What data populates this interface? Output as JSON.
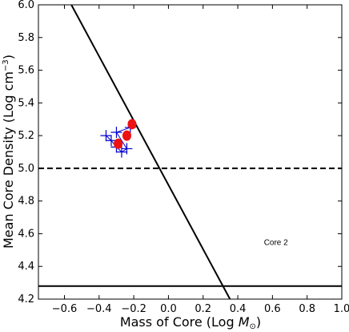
{
  "chart_data": {
    "type": "scatter",
    "xlabel_text": "Mass of Core (Log ",
    "xlabel_unit": "M",
    "xlabel_sub": "⊙",
    "xlabel_close": ")",
    "ylabel_text": "Mean Core Density (Log cm",
    "ylabel_sup": "−3",
    "ylabel_close": ")",
    "xlim": [
      -0.75,
      1.0
    ],
    "ylim": [
      4.2,
      6.0
    ],
    "xticks": [
      -0.6,
      -0.4,
      -0.2,
      0.0,
      0.2,
      0.4,
      0.6,
      0.8,
      1.0
    ],
    "xtick_labels": [
      "−0.6",
      "−0.4",
      "−0.2",
      "0.0",
      "0.2",
      "0.4",
      "0.6",
      "0.8",
      "1.0"
    ],
    "yticks": [
      4.2,
      4.4,
      4.6,
      4.8,
      5.0,
      5.2,
      5.4,
      5.6,
      5.8,
      6.0
    ],
    "ytick_labels": [
      "4.2",
      "4.4",
      "4.6",
      "4.8",
      "5.0",
      "5.2",
      "5.4",
      "5.6",
      "5.8",
      "6.0"
    ],
    "annotation": {
      "text": "Core 2",
      "x": 0.62,
      "y": 4.55
    },
    "series": [
      {
        "style": "plus",
        "color": "#0000cc",
        "points": [
          [
            -0.36,
            5.2
          ],
          [
            -0.33,
            5.17
          ],
          [
            -0.3,
            5.13
          ],
          [
            -0.27,
            5.1
          ],
          [
            -0.24,
            5.12
          ],
          [
            -0.3,
            5.22
          ],
          [
            -0.22,
            5.25
          ]
        ]
      },
      {
        "style": "circle",
        "color": "#ee1111",
        "points": [
          [
            -0.21,
            5.27
          ],
          [
            -0.24,
            5.2
          ],
          [
            -0.29,
            5.15
          ]
        ]
      }
    ],
    "lines": [
      {
        "style": "solid",
        "x": [
          -0.56,
          0.355
        ],
        "y": [
          6.0,
          4.2
        ]
      },
      {
        "style": "dashed",
        "x": [
          -0.75,
          1.0
        ],
        "y": [
          5.0,
          5.0
        ]
      },
      {
        "style": "solid",
        "x": [
          -0.75,
          1.0
        ],
        "y": [
          4.28,
          4.28
        ]
      }
    ]
  }
}
